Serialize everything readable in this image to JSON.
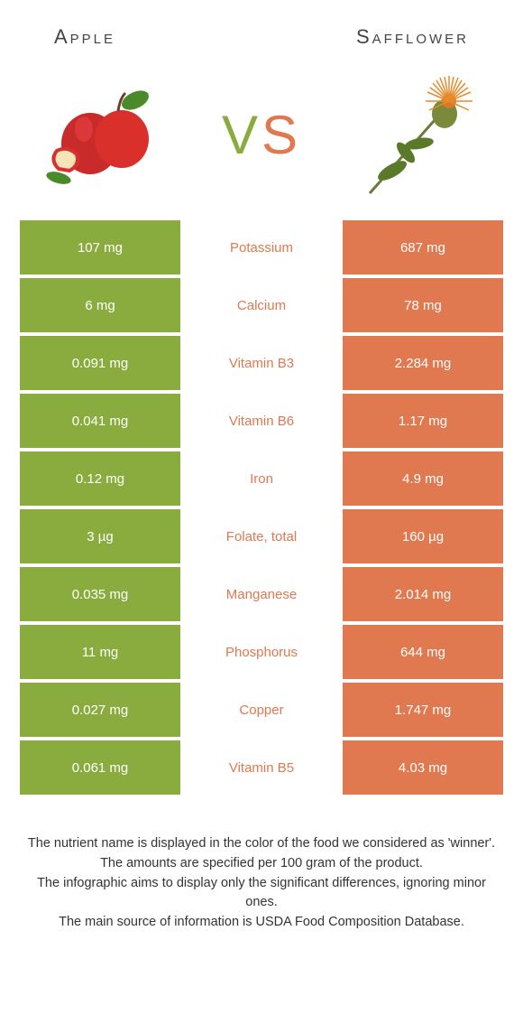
{
  "foods": {
    "left": {
      "name": "Apple",
      "color": "#8aab3e"
    },
    "right": {
      "name": "Safflower",
      "color": "#e07850"
    }
  },
  "vs_label": {
    "v": "V",
    "s": "S"
  },
  "table": {
    "left_bg": "#8aab3e",
    "right_bg": "#e07850",
    "mid_winner_colors": {
      "left": "#8aab3e",
      "right": "#e07850"
    },
    "rows": [
      {
        "left": "107 mg",
        "label": "Potassium",
        "right": "687 mg",
        "winner": "right"
      },
      {
        "left": "6 mg",
        "label": "Calcium",
        "right": "78 mg",
        "winner": "right"
      },
      {
        "left": "0.091 mg",
        "label": "Vitamin B3",
        "right": "2.284 mg",
        "winner": "right"
      },
      {
        "left": "0.041 mg",
        "label": "Vitamin B6",
        "right": "1.17 mg",
        "winner": "right"
      },
      {
        "left": "0.12 mg",
        "label": "Iron",
        "right": "4.9 mg",
        "winner": "right"
      },
      {
        "left": "3 µg",
        "label": "Folate, total",
        "right": "160 µg",
        "winner": "right"
      },
      {
        "left": "0.035 mg",
        "label": "Manganese",
        "right": "2.014 mg",
        "winner": "right"
      },
      {
        "left": "11 mg",
        "label": "Phosphorus",
        "right": "644 mg",
        "winner": "right"
      },
      {
        "left": "0.027 mg",
        "label": "Copper",
        "right": "1.747 mg",
        "winner": "right"
      },
      {
        "left": "0.061 mg",
        "label": "Vitamin B5",
        "right": "4.03 mg",
        "winner": "right"
      }
    ]
  },
  "footer": {
    "line1": "The nutrient name is displayed in the color of the food we considered as 'winner'.",
    "line2": "The amounts are specified per 100 gram of the product.",
    "line3": "The infographic aims to display only the significant differences, ignoring minor ones.",
    "line4": "The main source of information is USDA Food Composition Database."
  }
}
